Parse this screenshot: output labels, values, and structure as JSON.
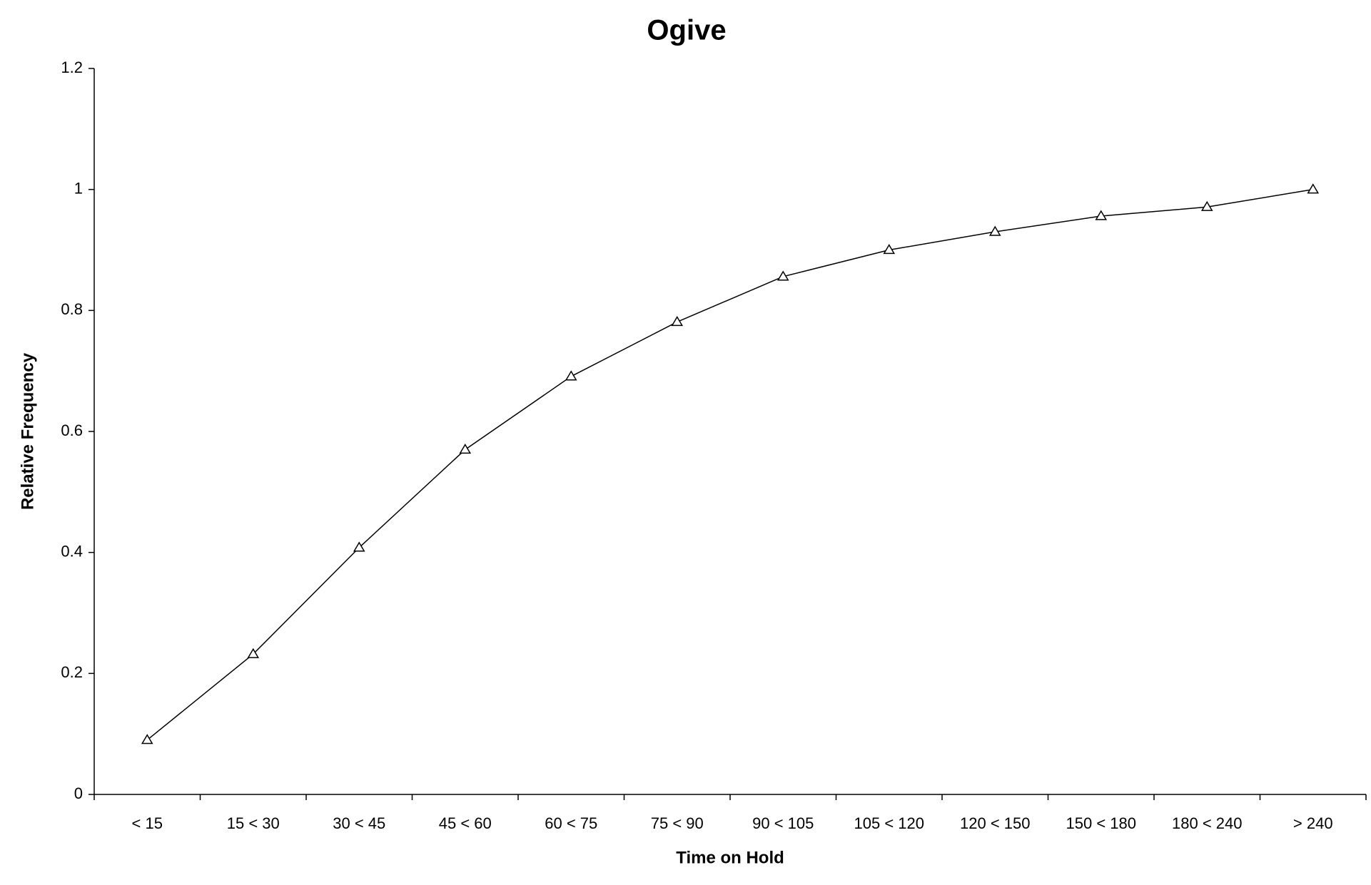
{
  "chart_data": {
    "type": "line",
    "title": "Ogive",
    "x_label": "Time on Hold",
    "y_label": "Relative Frequency",
    "categories": [
      "< 15",
      "15 < 30",
      "30 < 45",
      "45 < 60",
      "60 < 75",
      "75 < 90",
      "90 < 105",
      "105 < 120",
      "120 < 150",
      "150 < 180",
      "180 < 240",
      "> 240"
    ],
    "values": [
      0.09,
      0.232,
      0.408,
      0.57,
      0.691,
      0.781,
      0.856,
      0.9,
      0.93,
      0.956,
      0.971,
      1.0
    ],
    "color": "#000000",
    "marker": "triangle",
    "ylim": [
      0,
      1.2
    ],
    "yticks": [
      0,
      0.2,
      0.4,
      0.6,
      0.8,
      1,
      1.2
    ],
    "grid": false
  }
}
